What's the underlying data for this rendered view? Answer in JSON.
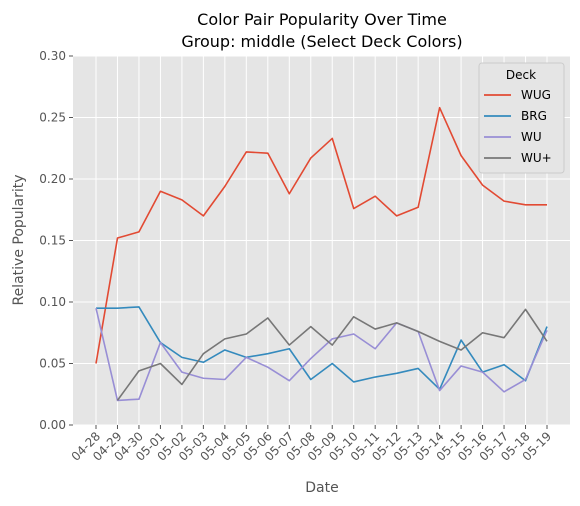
{
  "chart_data": {
    "type": "line",
    "title": "Color Pair Popularity Over Time",
    "subtitle": "Group: middle (Select Deck Colors)",
    "xlabel": "Date",
    "ylabel": "Relative Popularity",
    "categories": [
      "04-28",
      "04-29",
      "04-30",
      "05-01",
      "05-02",
      "05-03",
      "05-04",
      "05-05",
      "05-06",
      "05-07",
      "05-08",
      "05-09",
      "05-10",
      "05-11",
      "05-12",
      "05-13",
      "05-14",
      "05-15",
      "05-16",
      "05-17",
      "05-18",
      "05-19"
    ],
    "ylim": [
      0.0,
      0.3
    ],
    "yticks": [
      "0.00",
      "0.05",
      "0.10",
      "0.15",
      "0.20",
      "0.25",
      "0.30"
    ],
    "grid": true,
    "legend": {
      "title": "Deck",
      "placement": "top-right"
    },
    "series": [
      {
        "name": "WUG",
        "color": "#E24A33",
        "values": [
          0.05,
          0.152,
          0.157,
          0.19,
          0.183,
          0.17,
          0.194,
          0.222,
          0.221,
          0.188,
          0.217,
          0.233,
          0.176,
          0.186,
          0.17,
          0.177,
          0.258,
          0.219,
          0.195,
          0.182,
          0.179,
          0.179
        ]
      },
      {
        "name": "BRG",
        "color": "#348ABD",
        "values": [
          0.095,
          0.095,
          0.096,
          0.067,
          0.055,
          0.051,
          0.061,
          0.055,
          0.058,
          0.062,
          0.037,
          0.05,
          0.035,
          0.039,
          0.042,
          0.046,
          0.029,
          0.069,
          0.043,
          0.049,
          0.036,
          0.08
        ]
      },
      {
        "name": "WU",
        "color": "#988ED5",
        "values": [
          0.095,
          0.02,
          0.021,
          0.067,
          0.043,
          0.038,
          0.037,
          0.055,
          0.047,
          0.036,
          0.054,
          0.07,
          0.074,
          0.062,
          0.083,
          0.076,
          0.028,
          0.048,
          0.043,
          0.027,
          0.037,
          0.077
        ]
      },
      {
        "name": "WU+",
        "color": "#777777",
        "values": [
          null,
          0.02,
          0.044,
          0.05,
          0.033,
          0.058,
          0.07,
          0.074,
          0.087,
          0.065,
          0.08,
          0.065,
          0.088,
          0.078,
          0.083,
          0.076,
          0.068,
          0.061,
          0.075,
          0.071,
          0.094,
          0.068
        ]
      }
    ]
  }
}
